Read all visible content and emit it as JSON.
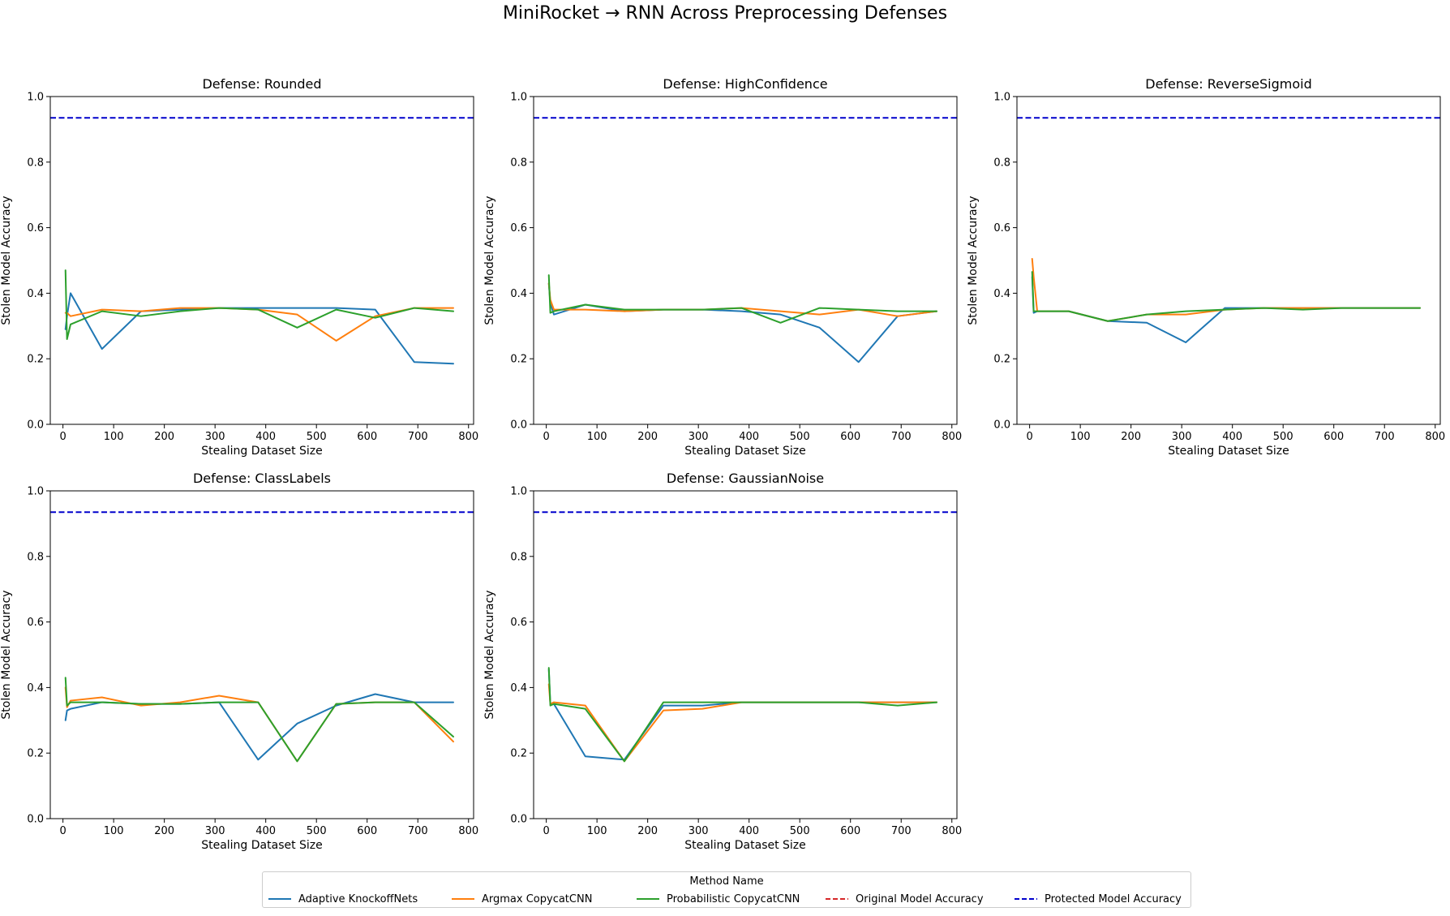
{
  "figure": {
    "title": "MiniRocket → RNN Across Preprocessing Defenses"
  },
  "colors": {
    "Adaptive KnockoffNets": "#1f77b4",
    "Argmax CopycatCNN": "#ff7f0e",
    "Probabilistic CopycatCNN": "#2ca02c",
    "Original Model Accuracy": "#d62728",
    "Protected Model Accuracy": "#0000cc"
  },
  "legend": {
    "title": "Method Name",
    "items": [
      {
        "label": "Adaptive KnockoffNets",
        "style": "solid"
      },
      {
        "label": "Argmax CopycatCNN",
        "style": "solid"
      },
      {
        "label": "Probabilistic CopycatCNN",
        "style": "solid"
      },
      {
        "label": "Original Model Accuracy",
        "style": "dashed"
      },
      {
        "label": "Protected Model Accuracy",
        "style": "dashed"
      }
    ]
  },
  "chart_data": [
    {
      "type": "line",
      "title": "Defense: Rounded",
      "xlabel": "Stealing Dataset Size",
      "ylabel": "Stolen Model Accuracy",
      "xlim": [
        -25,
        810
      ],
      "ylim": [
        0.0,
        1.0
      ],
      "xticks": [
        0,
        100,
        200,
        300,
        400,
        500,
        600,
        700,
        800
      ],
      "yticks": [
        0.0,
        0.2,
        0.4,
        0.6,
        0.8,
        1.0
      ],
      "x": [
        5,
        8,
        15,
        77,
        154,
        231,
        308,
        385,
        462,
        539,
        616,
        693,
        770
      ],
      "series": [
        {
          "name": "Adaptive KnockoffNets",
          "values": [
            0.29,
            0.33,
            0.4,
            0.23,
            0.345,
            0.35,
            0.355,
            0.355,
            0.355,
            0.355,
            0.35,
            0.19,
            0.185
          ]
        },
        {
          "name": "Argmax CopycatCNN",
          "values": [
            0.34,
            0.34,
            0.33,
            0.35,
            0.345,
            0.355,
            0.355,
            0.35,
            0.335,
            0.255,
            0.33,
            0.355,
            0.355
          ]
        },
        {
          "name": "Probabilistic CopycatCNN",
          "values": [
            0.47,
            0.26,
            0.305,
            0.345,
            0.33,
            0.345,
            0.355,
            0.35,
            0.295,
            0.35,
            0.325,
            0.355,
            0.345
          ]
        }
      ],
      "reference_lines": [
        {
          "name": "Protected Model Accuracy",
          "y": 0.935
        }
      ]
    },
    {
      "type": "line",
      "title": "Defense: HighConfidence",
      "xlabel": "Stealing Dataset Size",
      "ylabel": "Stolen Model Accuracy",
      "xlim": [
        -25,
        810
      ],
      "ylim": [
        0.0,
        1.0
      ],
      "xticks": [
        0,
        100,
        200,
        300,
        400,
        500,
        600,
        700,
        800
      ],
      "yticks": [
        0.0,
        0.2,
        0.4,
        0.6,
        0.8,
        1.0
      ],
      "x": [
        5,
        8,
        15,
        77,
        154,
        231,
        308,
        385,
        462,
        539,
        616,
        693,
        770
      ],
      "series": [
        {
          "name": "Adaptive KnockoffNets",
          "values": [
            0.43,
            0.37,
            0.335,
            0.365,
            0.345,
            0.35,
            0.35,
            0.345,
            0.335,
            0.295,
            0.19,
            0.33,
            0.345
          ]
        },
        {
          "name": "Argmax CopycatCNN",
          "values": [
            0.43,
            0.38,
            0.35,
            0.35,
            0.345,
            0.35,
            0.35,
            0.355,
            0.345,
            0.335,
            0.35,
            0.33,
            0.345
          ]
        },
        {
          "name": "Probabilistic CopycatCNN",
          "values": [
            0.455,
            0.34,
            0.345,
            0.365,
            0.35,
            0.35,
            0.35,
            0.355,
            0.31,
            0.355,
            0.35,
            0.345,
            0.345
          ]
        }
      ],
      "reference_lines": [
        {
          "name": "Protected Model Accuracy",
          "y": 0.935
        }
      ]
    },
    {
      "type": "line",
      "title": "Defense: ReverseSigmoid",
      "xlabel": "Stealing Dataset Size",
      "ylabel": "Stolen Model Accuracy",
      "xlim": [
        -25,
        810
      ],
      "ylim": [
        0.0,
        1.0
      ],
      "xticks": [
        0,
        100,
        200,
        300,
        400,
        500,
        600,
        700,
        800
      ],
      "yticks": [
        0.0,
        0.2,
        0.4,
        0.6,
        0.8,
        1.0
      ],
      "x": [
        5,
        8,
        15,
        77,
        154,
        231,
        308,
        385,
        462,
        539,
        616,
        693,
        770
      ],
      "series": [
        {
          "name": "Adaptive KnockoffNets",
          "values": [
            0.45,
            0.34,
            0.345,
            0.345,
            0.315,
            0.31,
            0.25,
            0.355,
            0.355,
            0.355,
            0.355,
            0.355,
            0.355
          ]
        },
        {
          "name": "Argmax CopycatCNN",
          "values": [
            0.505,
            0.45,
            0.345,
            0.345,
            0.315,
            0.335,
            0.335,
            0.35,
            0.355,
            0.355,
            0.355,
            0.355,
            0.355
          ]
        },
        {
          "name": "Probabilistic CopycatCNN",
          "values": [
            0.465,
            0.345,
            0.345,
            0.345,
            0.315,
            0.335,
            0.345,
            0.35,
            0.355,
            0.35,
            0.355,
            0.355,
            0.355
          ]
        }
      ],
      "reference_lines": [
        {
          "name": "Protected Model Accuracy",
          "y": 0.935
        }
      ]
    },
    {
      "type": "line",
      "title": "Defense: ClassLabels",
      "xlabel": "Stealing Dataset Size",
      "ylabel": "Stolen Model Accuracy",
      "xlim": [
        -25,
        810
      ],
      "ylim": [
        0.0,
        1.0
      ],
      "xticks": [
        0,
        100,
        200,
        300,
        400,
        500,
        600,
        700,
        800
      ],
      "yticks": [
        0.0,
        0.2,
        0.4,
        0.6,
        0.8,
        1.0
      ],
      "x": [
        5,
        8,
        15,
        77,
        154,
        231,
        308,
        385,
        462,
        539,
        616,
        693,
        770
      ],
      "series": [
        {
          "name": "Adaptive KnockoffNets",
          "values": [
            0.3,
            0.33,
            0.335,
            0.355,
            0.35,
            0.35,
            0.355,
            0.18,
            0.29,
            0.345,
            0.38,
            0.355,
            0.355
          ]
        },
        {
          "name": "Argmax CopycatCNN",
          "values": [
            0.4,
            0.34,
            0.36,
            0.37,
            0.345,
            0.355,
            0.375,
            0.355,
            0.175,
            0.35,
            0.355,
            0.355,
            0.235
          ]
        },
        {
          "name": "Probabilistic CopycatCNN",
          "values": [
            0.43,
            0.345,
            0.355,
            0.355,
            0.35,
            0.35,
            0.355,
            0.355,
            0.175,
            0.35,
            0.355,
            0.355,
            0.25
          ]
        }
      ],
      "reference_lines": [
        {
          "name": "Protected Model Accuracy",
          "y": 0.935
        }
      ]
    },
    {
      "type": "line",
      "title": "Defense: GaussianNoise",
      "xlabel": "Stealing Dataset Size",
      "ylabel": "Stolen Model Accuracy",
      "xlim": [
        -25,
        810
      ],
      "ylim": [
        0.0,
        1.0
      ],
      "xticks": [
        0,
        100,
        200,
        300,
        400,
        500,
        600,
        700,
        800
      ],
      "yticks": [
        0.0,
        0.2,
        0.4,
        0.6,
        0.8,
        1.0
      ],
      "x": [
        5,
        8,
        15,
        77,
        154,
        231,
        308,
        385,
        462,
        539,
        616,
        693,
        770
      ],
      "series": [
        {
          "name": "Adaptive KnockoffNets",
          "values": [
            0.455,
            0.35,
            0.35,
            0.19,
            0.18,
            0.345,
            0.345,
            0.355,
            0.355,
            0.355,
            0.355,
            0.355,
            0.355
          ]
        },
        {
          "name": "Argmax CopycatCNN",
          "values": [
            0.41,
            0.35,
            0.355,
            0.345,
            0.175,
            0.33,
            0.335,
            0.355,
            0.355,
            0.355,
            0.355,
            0.355,
            0.355
          ]
        },
        {
          "name": "Probabilistic CopycatCNN",
          "values": [
            0.46,
            0.345,
            0.35,
            0.335,
            0.175,
            0.355,
            0.355,
            0.355,
            0.355,
            0.355,
            0.355,
            0.345,
            0.355
          ]
        }
      ],
      "reference_lines": [
        {
          "name": "Protected Model Accuracy",
          "y": 0.935
        }
      ]
    }
  ]
}
